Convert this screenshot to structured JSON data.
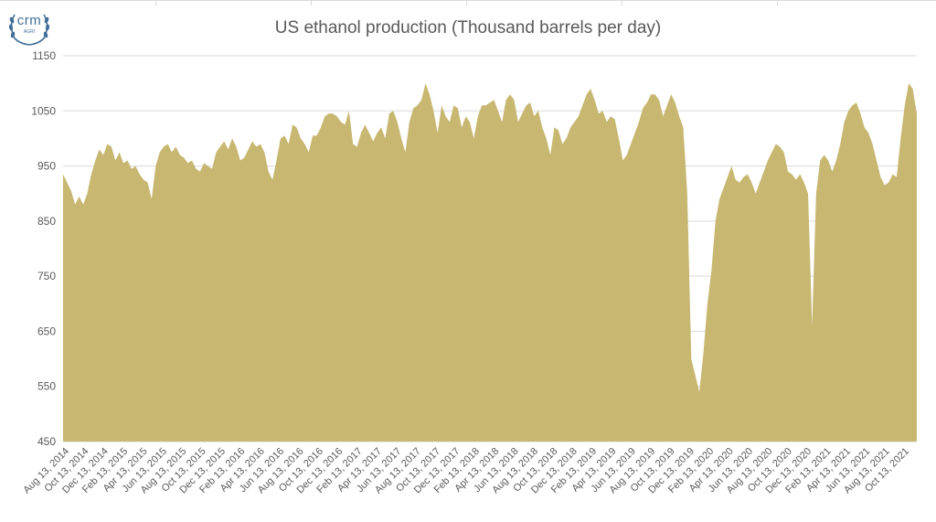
{
  "logo": {
    "text": "crm",
    "sub": "AGRI"
  },
  "colors": {
    "area": "#c8b771",
    "grid": "#d9d9d9",
    "text": "#595959",
    "logo": "#3f6e99"
  },
  "chart_data": {
    "type": "area",
    "title": "US ethanol production (Thousand barrels per day)",
    "xlabel": "",
    "ylabel": "",
    "ylim": [
      450,
      1150
    ],
    "yticks": [
      450,
      550,
      650,
      750,
      850,
      950,
      1050,
      1150
    ],
    "xticks": [
      "Aug 13, 2014",
      "Oct 13, 2014",
      "Dec 13, 2014",
      "Feb 13, 2015",
      "Apr 13, 2015",
      "Jun 13, 2015",
      "Aug 13, 2015",
      "Oct 13, 2015",
      "Dec 13, 2015",
      "Feb 13, 2016",
      "Apr 13, 2016",
      "Jun 13, 2016",
      "Aug 13, 2016",
      "Oct 13, 2016",
      "Dec 13, 2016",
      "Feb 13, 2017",
      "Apr 13, 2017",
      "Jun 13, 2017",
      "Aug 13, 2017",
      "Oct 13, 2017",
      "Dec 13, 2017",
      "Feb 13, 2018",
      "Apr 13, 2018",
      "Jun 13, 2018",
      "Aug 13, 2018",
      "Oct 13, 2018",
      "Dec 13, 2018",
      "Feb 13, 2019",
      "Apr 13, 2019",
      "Jun 13, 2019",
      "Aug 13, 2019",
      "Oct 13, 2019",
      "Dec 13, 2019",
      "Feb 13, 2020",
      "Apr 13, 2020",
      "Jun 13, 2020",
      "Aug 13, 2020",
      "Oct 13, 2020",
      "Dec 13, 2020",
      "Feb 13, 2021",
      "Apr 13, 2021",
      "Jun 13, 2021",
      "Aug 13, 2021",
      "Oct 13, 2021"
    ],
    "grid": true,
    "legend": "none",
    "series": [
      {
        "values": [
          935,
          920,
          905,
          880,
          895,
          880,
          900,
          935,
          960,
          980,
          970,
          990,
          985,
          960,
          975,
          955,
          960,
          945,
          950,
          935,
          925,
          920,
          890,
          950,
          975,
          985,
          990,
          975,
          985,
          970,
          965,
          955,
          960,
          945,
          940,
          955,
          950,
          945,
          975,
          985,
          995,
          980,
          1000,
          985,
          960,
          965,
          980,
          995,
          985,
          990,
          975,
          940,
          925,
          960,
          1000,
          1005,
          990,
          1025,
          1020,
          1000,
          990,
          975,
          1005,
          1005,
          1020,
          1040,
          1045,
          1045,
          1040,
          1030,
          1025,
          1050,
          990,
          985,
          1010,
          1025,
          1010,
          995,
          1010,
          1020,
          1000,
          1045,
          1050,
          1030,
          1000,
          975,
          1030,
          1055,
          1060,
          1070,
          1100,
          1080,
          1050,
          1010,
          1060,
          1040,
          1030,
          1060,
          1055,
          1020,
          1040,
          1030,
          1000,
          1040,
          1060,
          1060,
          1065,
          1070,
          1050,
          1030,
          1070,
          1080,
          1070,
          1030,
          1045,
          1060,
          1065,
          1040,
          1050,
          1020,
          1000,
          970,
          1020,
          1015,
          990,
          1000,
          1020,
          1030,
          1040,
          1060,
          1080,
          1090,
          1070,
          1045,
          1050,
          1030,
          1040,
          1035,
          1000,
          960,
          970,
          990,
          1010,
          1030,
          1055,
          1065,
          1080,
          1080,
          1070,
          1040,
          1060,
          1080,
          1065,
          1040,
          1020,
          900,
          600,
          570,
          540,
          610,
          700,
          760,
          850,
          890,
          910,
          930,
          950,
          925,
          920,
          930,
          935,
          920,
          900,
          920,
          940,
          960,
          975,
          990,
          985,
          975,
          940,
          935,
          925,
          935,
          920,
          900,
          660,
          900,
          960,
          970,
          960,
          940,
          960,
          990,
          1030,
          1050,
          1060,
          1065,
          1045,
          1020,
          1010,
          990,
          960,
          930,
          915,
          920,
          935,
          930,
          1000,
          1060,
          1100,
          1090,
          1045
        ]
      }
    ]
  }
}
